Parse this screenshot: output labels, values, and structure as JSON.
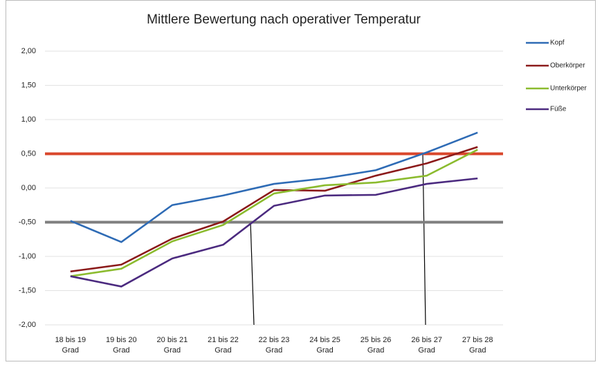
{
  "chart_data": {
    "type": "line",
    "title": "Mittlere Bewertung nach operativer Temperatur",
    "categories": [
      "18 bis 19 Grad",
      "19 bis 20 Grad",
      "20 bis 21 Grad",
      "21 bis 22 Grad",
      "22 bis 23 Grad",
      "24 bis 25 Grad",
      "25 bis 26 Grad",
      "26 bis 27 Grad",
      "27 bis 28 Grad"
    ],
    "series": [
      {
        "name": "Kopf",
        "color": "#2e6bb5",
        "values": [
          -0.48,
          -0.79,
          -0.25,
          -0.11,
          0.06,
          0.14,
          0.26,
          0.52,
          0.81
        ]
      },
      {
        "name": "Oberkörper",
        "color": "#8b1a1a",
        "values": [
          -1.22,
          -1.12,
          -0.74,
          -0.49,
          -0.03,
          -0.04,
          0.18,
          0.36,
          0.6
        ]
      },
      {
        "name": "Unterkörper",
        "color": "#8bbb2e",
        "values": [
          -1.29,
          -1.18,
          -0.78,
          -0.54,
          -0.08,
          0.04,
          0.08,
          0.18,
          0.56
        ]
      },
      {
        "name": "Füße",
        "color": "#4b2a7f",
        "values": [
          -1.29,
          -1.44,
          -1.03,
          -0.83,
          -0.26,
          -0.11,
          -0.1,
          0.06,
          0.14
        ]
      }
    ],
    "reference_lines": [
      {
        "value": 0.5,
        "color": "#d9462b"
      },
      {
        "value": -0.5,
        "color": "#7f7f7f"
      }
    ],
    "ylim": [
      -2,
      2
    ],
    "yticks": [
      {
        "value": -2,
        "label": "-2,00"
      },
      {
        "value": -1.5,
        "label": "-1,50"
      },
      {
        "value": -1,
        "label": "-1,00"
      },
      {
        "value": -0.5,
        "label": "-0,50"
      },
      {
        "value": 0,
        "label": "0,00"
      },
      {
        "value": 0.5,
        "label": "0,50"
      },
      {
        "value": 1,
        "label": "1,00"
      },
      {
        "value": 1.5,
        "label": "1,50"
      },
      {
        "value": 2,
        "label": "2,00"
      }
    ],
    "grid": true,
    "legend": "right"
  }
}
